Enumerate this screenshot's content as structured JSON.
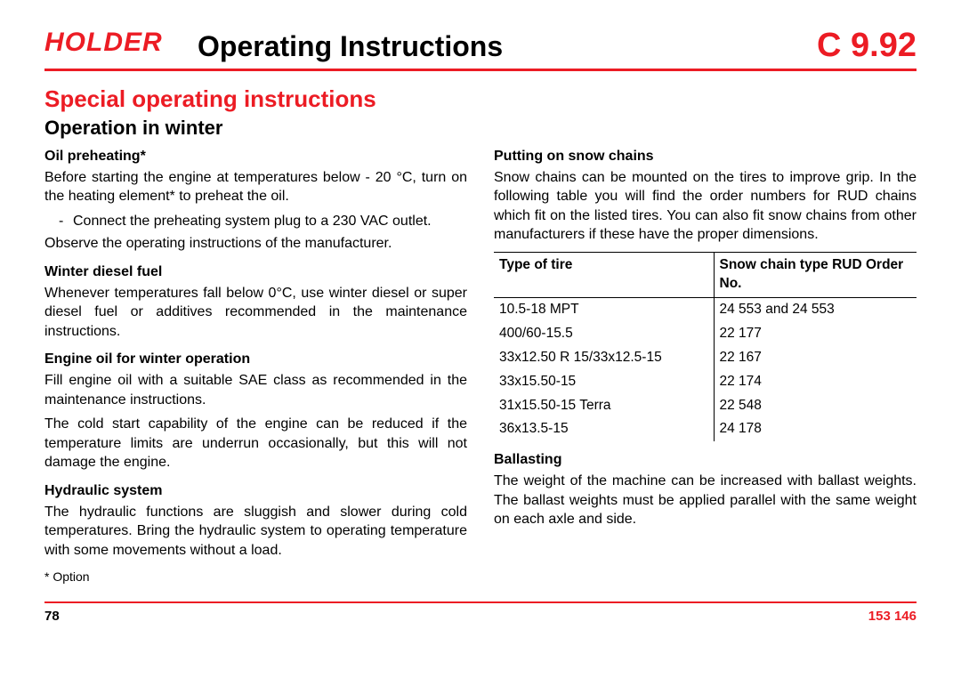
{
  "colors": {
    "accent": "#ec1c24",
    "text": "#000000",
    "background": "#ffffff",
    "rule": "#ec1c24",
    "table_border": "#000000"
  },
  "header": {
    "logo_text": "HOLDER",
    "main_title": "Operating Instructions",
    "model": "C 9.92"
  },
  "section_title": "Special  operating  instructions",
  "subsection_title": "Operation in winter",
  "left_column": {
    "oil_preheating": {
      "heading": "Oil preheating*",
      "para1": "Before starting the engine at temperatures below - 20 °C, turn on the heating element* to preheat the oil.",
      "bullet": "Connect the preheating system plug to a 230 VAC outlet.",
      "para2": "Observe the operating instructions of the manufacturer."
    },
    "winter_diesel": {
      "heading": "Winter diesel fuel",
      "para": "Whenever temperatures fall below 0°C, use winter diesel or super diesel fuel or additives recommended in the maintenance instructions."
    },
    "engine_oil": {
      "heading": "Engine oil for winter operation",
      "para1": "Fill engine oil with a suitable SAE class as recommended in the maintenance instructions.",
      "para2": "The cold start capability of the engine can be reduced if the temperature limits are underrun occasionally, but this will not damage the engine."
    },
    "hydraulic": {
      "heading": "Hydraulic system",
      "para": "The hydraulic functions are sluggish and slower during cold temperatures. Bring the hydraulic system to operating temperature with some movements without a load."
    },
    "footnote": "*  Option"
  },
  "right_column": {
    "snow_chains": {
      "heading": "Putting on snow chains",
      "para": "Snow chains can be mounted on the tires to improve grip. In the following table you will find the order numbers for RUD chains which fit on the listed tires. You can also fit snow chains from other manufacturers if these have the proper dimensions."
    },
    "tire_table": {
      "type": "table",
      "columns": [
        "Type of tire",
        "Snow chain type RUD Order No."
      ],
      "col_widths": [
        "52%",
        "48%"
      ],
      "rows": [
        [
          "10.5-18 MPT",
          "24 553 and 24 553"
        ],
        [
          "400/60-15.5",
          "22 177"
        ],
        [
          "33x12.50 R 15/33x12.5-15",
          "22 167"
        ],
        [
          "33x15.50-15",
          "22 174"
        ],
        [
          "31x15.50-15 Terra",
          "22 548"
        ],
        [
          "36x13.5-15",
          "24 178"
        ]
      ],
      "header_border_color": "#000000",
      "header_border_width": 1.5,
      "column_divider_width": 1.5,
      "font_size": 15.5
    },
    "ballasting": {
      "heading": "Ballasting",
      "para": "The weight of the machine can be increased with ballast weights. The ballast weights must be applied parallel with the same weight on each axle and side."
    }
  },
  "footer": {
    "page_number": "78",
    "doc_number": "153 146"
  }
}
